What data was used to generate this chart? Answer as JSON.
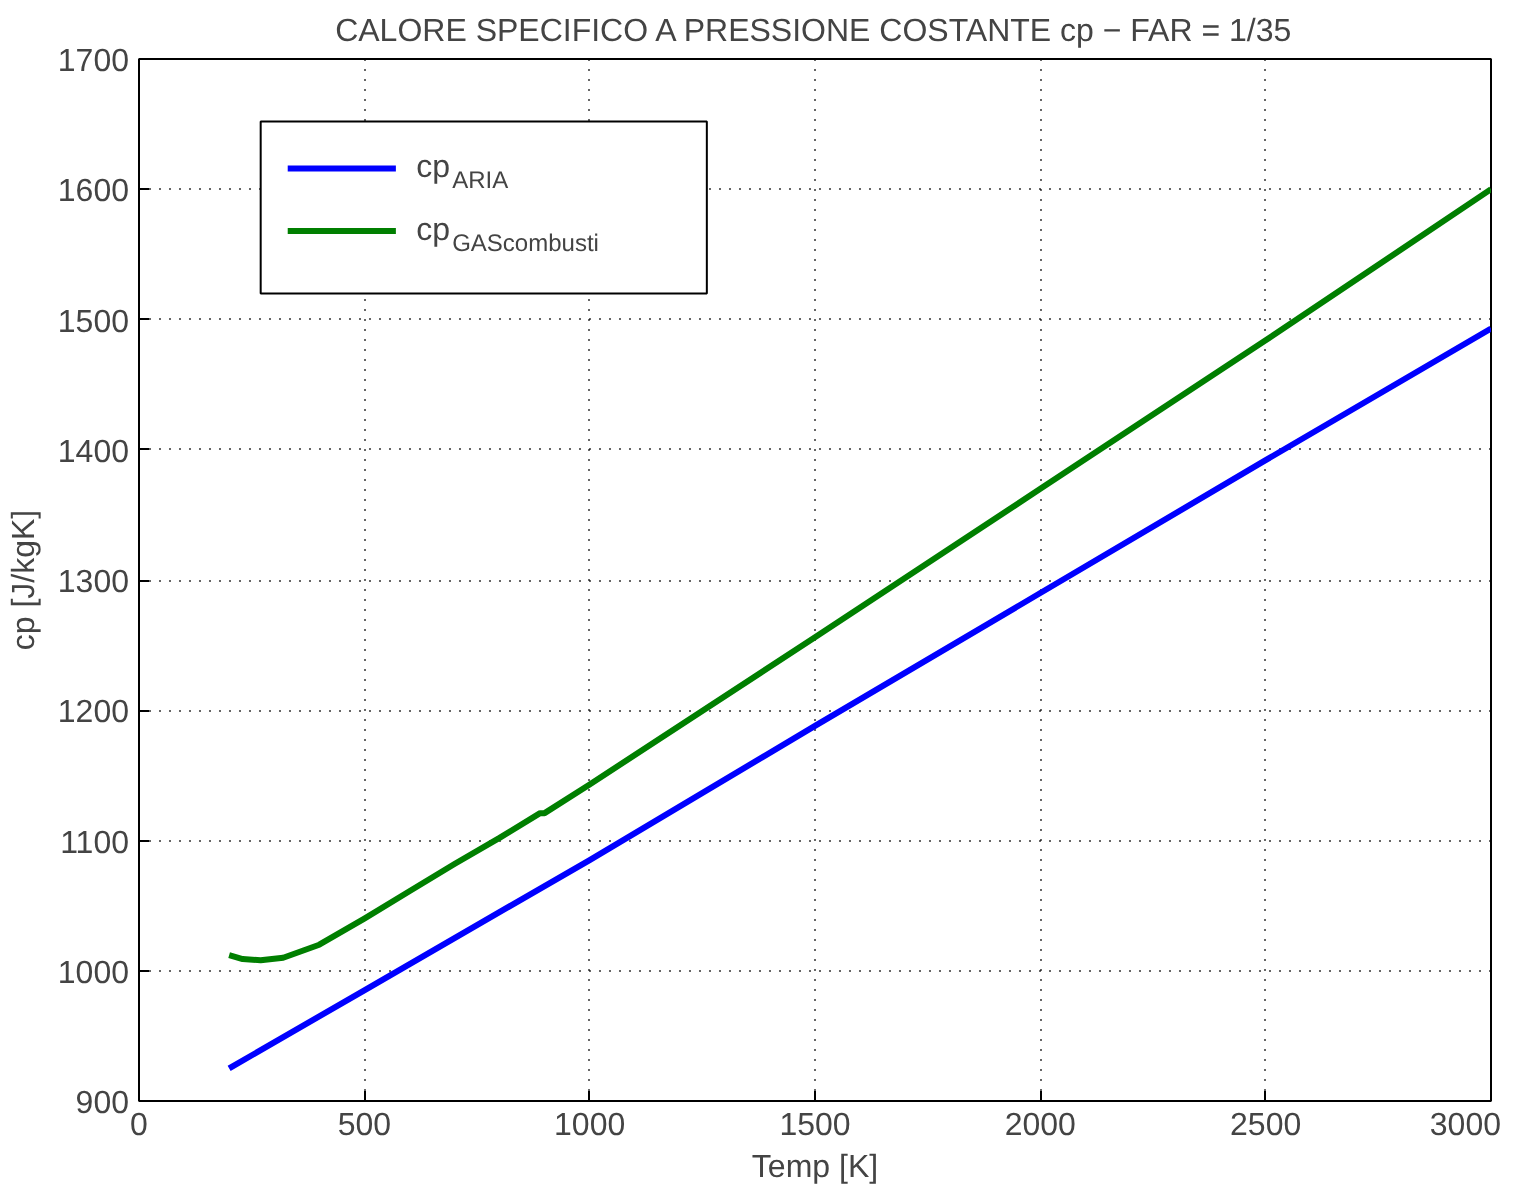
{
  "chart_data": {
    "type": "line",
    "title": "CALORE SPECIFICO A PRESSIONE COSTANTE cp − FAR = 1/35",
    "xlabel": "Temp [K]",
    "ylabel": "cp [J/kgK]",
    "xlim": [
      0,
      3000
    ],
    "ylim": [
      900,
      1700
    ],
    "xticks": [
      0,
      500,
      1000,
      1500,
      2000,
      2500,
      3000
    ],
    "yticks": [
      900,
      1000,
      1100,
      1200,
      1300,
      1400,
      1500,
      1600,
      1700
    ],
    "grid": true,
    "legend": "top left",
    "line_style": "solid",
    "marker": "none",
    "series": [
      {
        "name": "cp$_{ARIA}$",
        "color": "#0000ff",
        "x": [
          200,
          500,
          1000,
          1500,
          2000,
          2500,
          3000
        ],
        "values": [
          925,
          985,
          1085,
          1188,
          1290,
          1392,
          1493
        ]
      },
      {
        "name": "cp$_{GAScombusti}$",
        "color": "#007f00",
        "x": [
          200,
          230,
          270,
          320,
          400,
          500,
          600,
          700,
          800,
          890,
          900,
          1000,
          1500,
          2000,
          2500,
          3000
        ],
        "values": [
          1012,
          1009,
          1008,
          1010,
          1020,
          1040,
          1061,
          1082,
          1102,
          1121,
          1121,
          1143,
          1256,
          1370,
          1484,
          1600
        ]
      }
    ]
  }
}
